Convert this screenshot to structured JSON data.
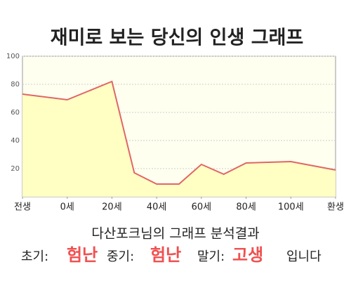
{
  "chart_data": {
    "type": "area",
    "title": "재미로 보는 당신의 인생 그래프",
    "x": [
      -20,
      0,
      20,
      30,
      40,
      50,
      60,
      70,
      80,
      90,
      100,
      120
    ],
    "values": [
      73,
      69,
      82,
      17,
      9,
      9,
      23,
      16,
      24,
      24.5,
      25,
      19
    ],
    "color": "#e06666",
    "fill_color": "#ffffc4",
    "xlim": [
      -20,
      120
    ],
    "xticks": [
      {
        "value": -20,
        "label": "전생"
      },
      {
        "value": 0,
        "label": "0세"
      },
      {
        "value": 20,
        "label": "20세"
      },
      {
        "value": 40,
        "label": "40세"
      },
      {
        "value": 60,
        "label": "60세"
      },
      {
        "value": 80,
        "label": "80세"
      },
      {
        "value": 100,
        "label": "100세"
      },
      {
        "value": 120,
        "label": "환생"
      }
    ],
    "ylim": [
      0,
      100
    ],
    "yticks": [
      20,
      40,
      60,
      80,
      100
    ],
    "grid": true
  },
  "result": {
    "heading": "다산포크님의 그래프 분석결과",
    "items": [
      {
        "label": "초기:",
        "value": "험난"
      },
      {
        "label": "중기:",
        "value": "험난"
      },
      {
        "label": "말기:",
        "value": "고생"
      }
    ],
    "ending": "입니다"
  }
}
